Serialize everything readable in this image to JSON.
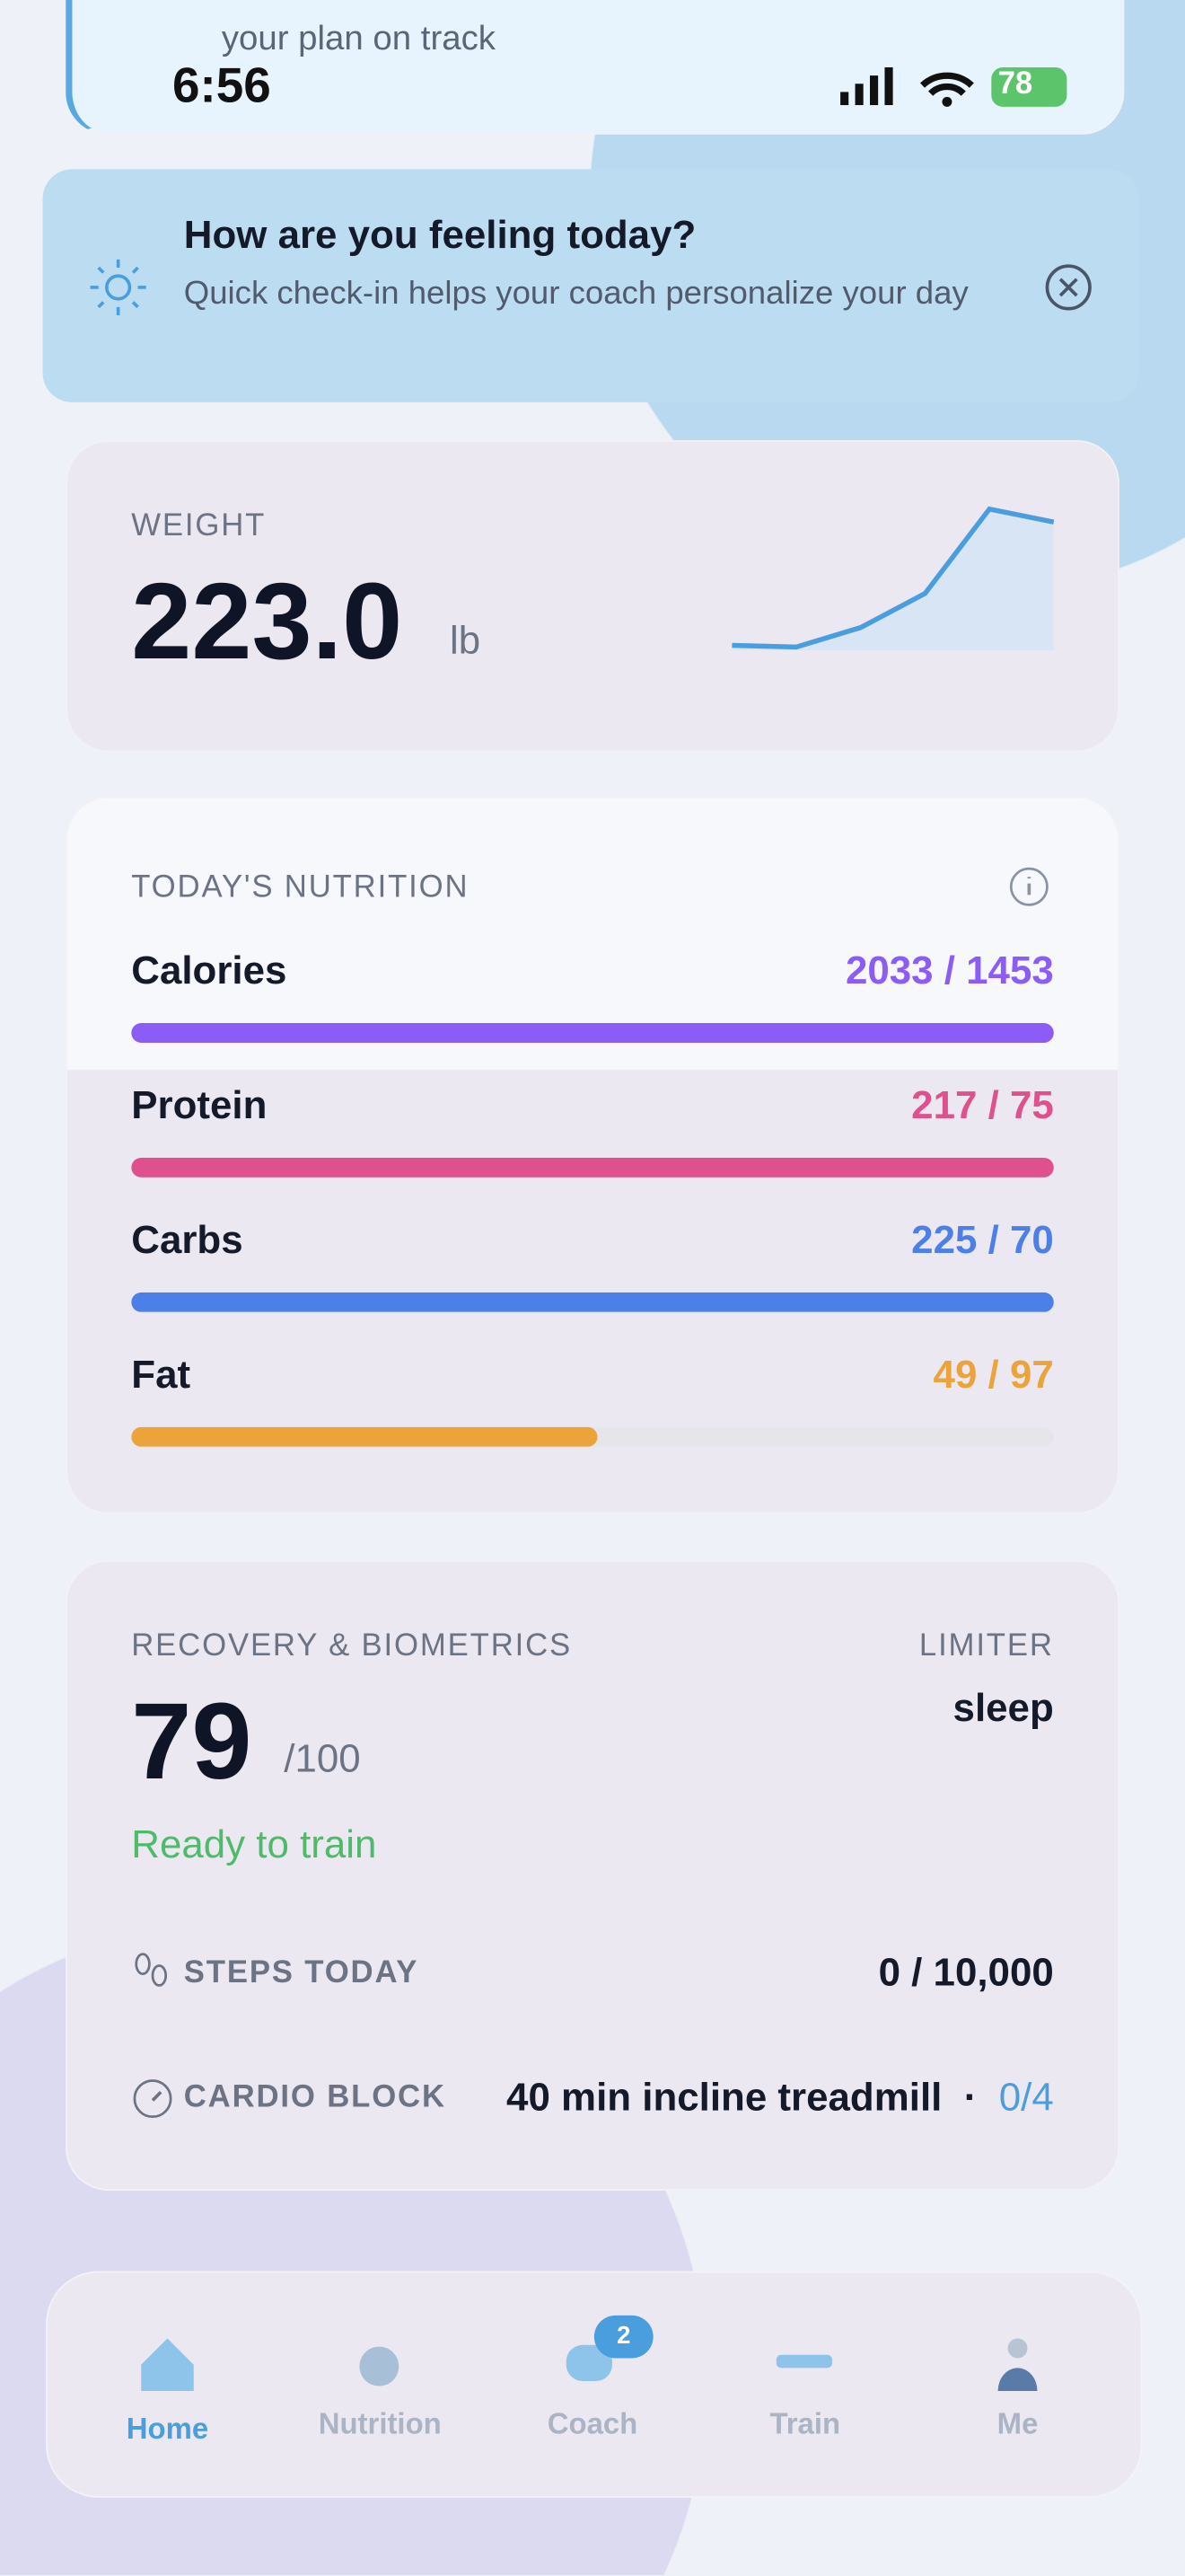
{
  "status_bar": {
    "time": "6:56",
    "battery": "78"
  },
  "top_card": {
    "text": "your plan on track"
  },
  "checkin": {
    "title": "How are you feeling today?",
    "subtitle": "Quick check-in helps your coach personalize your day"
  },
  "weight": {
    "label": "WEIGHT",
    "value": "223.0",
    "unit": "lb",
    "trend": [
      2,
      1.9,
      3.1,
      5.2,
      10.4,
      9.6
    ]
  },
  "nutrition": {
    "title": "TODAY'S NUTRITION",
    "rows": [
      {
        "name": "Calories",
        "consumed": 2033,
        "goal": 1453,
        "label": "2033 / 1453",
        "color": "#8b5cf6"
      },
      {
        "name": "Protein",
        "consumed": 217,
        "goal": 75,
        "label": "217 / 75",
        "color": "#e0508e"
      },
      {
        "name": "Carbs",
        "consumed": 225,
        "goal": 70,
        "label": "225 / 70",
        "color": "#4d7fe8"
      },
      {
        "name": "Fat",
        "consumed": 49,
        "goal": 97,
        "label": "49 / 97",
        "color": "#eba43c"
      }
    ]
  },
  "recovery": {
    "title": "RECOVERY & BIOMETRICS",
    "score": 79,
    "score_max": "/100",
    "status": "Ready to train",
    "limiter_label": "LIMITER",
    "limiter": "sleep",
    "steps_label": "STEPS TODAY",
    "steps": "0 / 10,000",
    "cardio_label": "CARDIO BLOCK",
    "cardio": "40 min incline treadmill",
    "separator": "·",
    "cardio_progress": "0/4"
  },
  "nav": {
    "items": [
      "Home",
      "Nutrition",
      "Coach",
      "Train",
      "Me"
    ],
    "coach_badge": "2"
  }
}
